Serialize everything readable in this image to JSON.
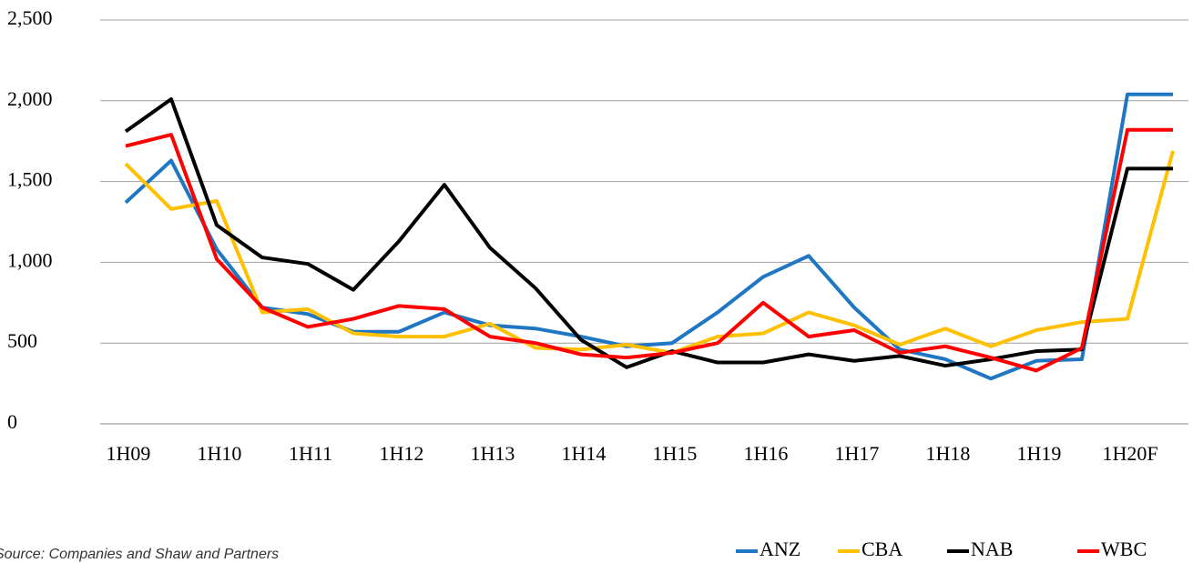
{
  "chart_data": {
    "type": "line",
    "source": "Source: Companies and Shaw and Partners",
    "categories": [
      "1H09",
      null,
      "1H10",
      null,
      "1H11",
      null,
      "1H12",
      null,
      "1H13",
      null,
      "1H14",
      null,
      "1H15",
      null,
      "1H16",
      null,
      "1H17",
      null,
      "1H18",
      null,
      "1H19",
      null,
      "1H20F",
      null
    ],
    "series": [
      {
        "name": "ANZ",
        "color": "#1f77c4",
        "values": [
          1370,
          1630,
          1080,
          720,
          680,
          570,
          570,
          690,
          610,
          590,
          540,
          480,
          500,
          690,
          910,
          1040,
          720,
          460,
          400,
          280,
          390,
          400,
          2040,
          2040
        ]
      },
      {
        "name": "CBA",
        "color": "#ffc000",
        "values": [
          1610,
          1330,
          1380,
          690,
          710,
          560,
          540,
          540,
          620,
          470,
          460,
          490,
          440,
          540,
          560,
          690,
          610,
          490,
          590,
          480,
          580,
          630,
          650,
          1690
        ]
      },
      {
        "name": "NAB",
        "color": "#000000",
        "values": [
          1810,
          2010,
          1230,
          1030,
          990,
          830,
          1130,
          1480,
          1090,
          840,
          520,
          350,
          450,
          380,
          380,
          430,
          390,
          420,
          360,
          400,
          450,
          460,
          1580,
          1580
        ]
      },
      {
        "name": "WBC",
        "color": "#ff0000",
        "values": [
          1720,
          1790,
          1020,
          720,
          600,
          650,
          730,
          710,
          540,
          500,
          430,
          410,
          440,
          500,
          750,
          540,
          580,
          440,
          480,
          410,
          330,
          470,
          1820,
          1820
        ]
      }
    ],
    "ylim": [
      0,
      2500
    ],
    "yticks": [
      0,
      500,
      {
        "value": 1000,
        "label": "1,000"
      },
      {
        "value": 1500,
        "label": "1,500"
      },
      {
        "value": 2000,
        "label": "2,000"
      },
      {
        "value": 2500,
        "label": "2,500"
      }
    ],
    "grid": true,
    "legend": "bottom-right"
  }
}
